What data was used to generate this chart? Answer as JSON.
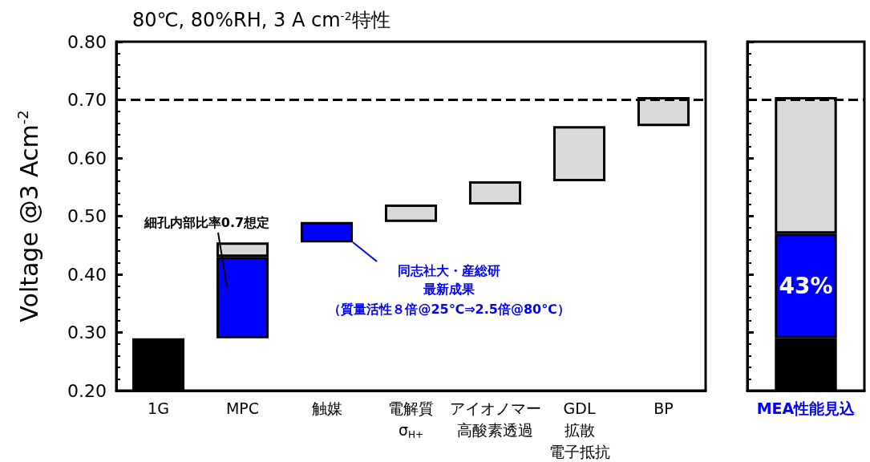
{
  "chart_data": [
    {
      "type": "bar",
      "title": "80℃, 80%RH, 3 A cm$^{-2}$特性",
      "ylabel": "Voltage @3 Acm$^{-2}$",
      "categories": [
        "1G",
        "MPC",
        "触媒",
        "電解質\nσ$_{H+}$",
        "アイオノマー高酸素透過",
        "GDL拡散電子抵抗",
        "BP"
      ],
      "series": [
        {
          "colors": [
            "#000000",
            "#0000ff",
            "#0000ff",
            "#d9d9d9",
            "#d9d9d9",
            "#d9d9d9",
            "#d9d9d9"
          ],
          "base": [
            0.2,
            0.29,
            0.455,
            0.49,
            0.52,
            0.56,
            0.655
          ],
          "values": [
            0.09,
            0.14,
            0.035,
            0.03,
            0.04,
            0.095,
            0.05
          ]
        },
        {
          "color": "#d9d9d9",
          "base": [
            null,
            0.43,
            null,
            null,
            null,
            null,
            null
          ],
          "values": [
            null,
            0.025,
            null,
            null,
            null,
            null,
            null
          ]
        }
      ],
      "ylim": [
        0.2,
        0.8
      ],
      "yticks": [
        {
          "value": 0.2,
          "label": "0.20"
        },
        {
          "value": 0.3,
          "label": "0.30"
        },
        {
          "value": 0.4,
          "label": "0.40"
        },
        {
          "value": 0.5,
          "label": "0.50"
        },
        {
          "value": 0.6,
          "label": "0.60"
        },
        {
          "value": 0.7,
          "label": "0.70"
        },
        {
          "value": 0.8,
          "label": "0.80"
        }
      ],
      "ref_lines": [
        {
          "axis": "y",
          "value": 0.7,
          "color": "#000000",
          "line_style": "dashed"
        }
      ],
      "annotations": [
        "細孔内部比率0.7想定",
        "同志社大・産総研最新成果",
        "（質量活性８倍@25℃⇒2.5倍@80℃）"
      ],
      "grid": false
    },
    {
      "type": "bar",
      "categories": [
        "MEA性能見込"
      ],
      "series": [
        {
          "color": "#000000",
          "base": [
            0.2
          ],
          "values": [
            0.09
          ]
        },
        {
          "color": "#0000ff",
          "base": [
            0.29
          ],
          "values": [
            0.18
          ]
        },
        {
          "color": "#d9d9d9",
          "base": [
            0.47
          ],
          "values": [
            0.235
          ]
        }
      ],
      "ylim": [
        0.2,
        0.8
      ],
      "yticks": [
        {
          "value": 0.2,
          "label": null
        },
        {
          "value": 0.3,
          "label": null
        },
        {
          "value": 0.4,
          "label": null
        },
        {
          "value": 0.5,
          "label": null
        },
        {
          "value": 0.6,
          "label": null
        },
        {
          "value": 0.7,
          "label": null
        },
        {
          "value": 0.8,
          "label": null
        }
      ],
      "ref_lines": [
        {
          "axis": "y",
          "value": 0.7,
          "color": "#000000",
          "line_style": "dashed"
        }
      ],
      "annotations": [
        "43%"
      ],
      "tick_labels": "x",
      "grid": false
    }
  ]
}
